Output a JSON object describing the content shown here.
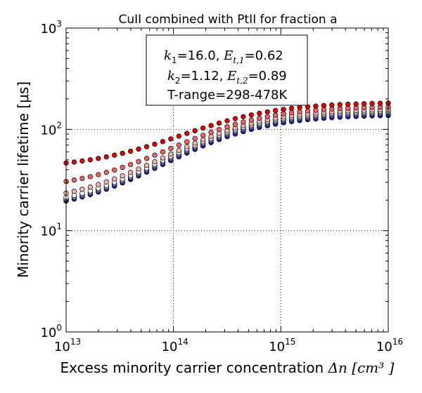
{
  "chart_data": {
    "type": "scatter",
    "title": "CuII combined with PtII for fraction a",
    "xlabel": "Excess minority carrier concentration",
    "xlabel_math": "Δn",
    "xlabel_unit": "[cm³ ]",
    "ylabel": "Minority carrier lifetime [μs]",
    "x_scale": "log",
    "y_scale": "log",
    "xlim": [
      10000000000000.0,
      1e+16
    ],
    "ylim": [
      1,
      1000
    ],
    "grid": true,
    "x_ticks": [
      {
        "value": 10000000000000.0,
        "base": "10",
        "exp": "13"
      },
      {
        "value": 100000000000000.0,
        "base": "10",
        "exp": "14"
      },
      {
        "value": 1000000000000000.0,
        "base": "10",
        "exp": "15"
      },
      {
        "value": 1e+16,
        "base": "10",
        "exp": "16"
      }
    ],
    "y_ticks": [
      {
        "value": 1,
        "base": "10",
        "exp": "0"
      },
      {
        "value": 10,
        "base": "10",
        "exp": "1"
      },
      {
        "value": 100,
        "base": "10",
        "exp": "2"
      },
      {
        "value": 1000,
        "base": "10",
        "exp": "3"
      }
    ],
    "annotation": {
      "line1": {
        "k_sym": "k",
        "k_sub": "1",
        "k_val": "=16.0, ",
        "e_sym": "E",
        "e_sub": "t,1",
        "e_val": "=0.62"
      },
      "line2": {
        "k_sym": "k",
        "k_sub": "2",
        "k_val": "=1.12, ",
        "e_sym": "E",
        "e_sub": "t,2",
        "e_val": "=0.89"
      },
      "line3": "T-range=298-478K"
    },
    "series": [
      {
        "color": "#1a1acc",
        "tau_low": 14.8,
        "tau_high": 140
      },
      {
        "color": "#5a5ad8",
        "tau_low": 15.0,
        "tau_high": 145
      },
      {
        "color": "#a0a0e8",
        "tau_low": 15.4,
        "tau_high": 150
      },
      {
        "color": "#ffffff",
        "tau_low": 16.0,
        "tau_high": 155
      },
      {
        "color": "#f4b4b4",
        "tau_low": 18.0,
        "tau_high": 160
      },
      {
        "color": "#ee6464",
        "tau_low": 25.0,
        "tau_high": 170
      },
      {
        "color": "#dd0000",
        "tau_low": 41.0,
        "tau_high": 185
      }
    ],
    "n_ref": 250000000000000.0,
    "points_per_series": 41
  }
}
